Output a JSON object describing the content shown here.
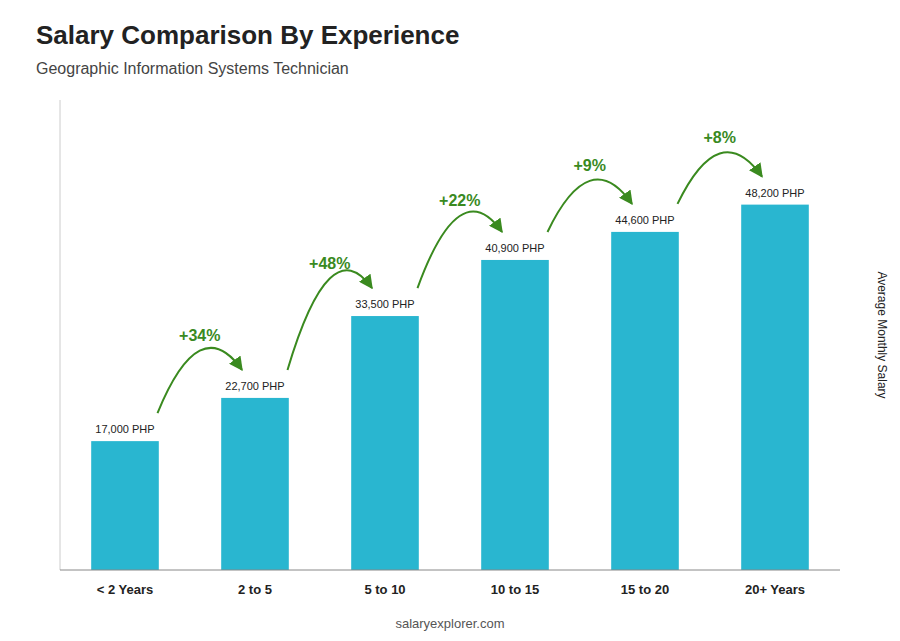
{
  "chart_data": {
    "type": "bar",
    "title": "Salary Comparison By Experience",
    "subtitle": "Geographic Information Systems Technician",
    "ylabel": "Average Monthly Salary",
    "source": "salaryexplorer.com",
    "categories": [
      "< 2 Years",
      "2 to 5",
      "5 to 10",
      "10 to 15",
      "15 to 20",
      "20+ Years"
    ],
    "values": [
      17000,
      22700,
      33500,
      40900,
      44600,
      48200
    ],
    "value_labels": [
      "17,000 PHP",
      "22,700 PHP",
      "33,500 PHP",
      "40,900 PHP",
      "44,600 PHP",
      "48,200 PHP"
    ],
    "data_labels": true,
    "annotations": [
      "+34%",
      "+48%",
      "+22%",
      "+9%",
      "+8%"
    ],
    "color": "#29b6d0",
    "ylim": [
      0,
      62000
    ],
    "tick_labels": "x"
  }
}
